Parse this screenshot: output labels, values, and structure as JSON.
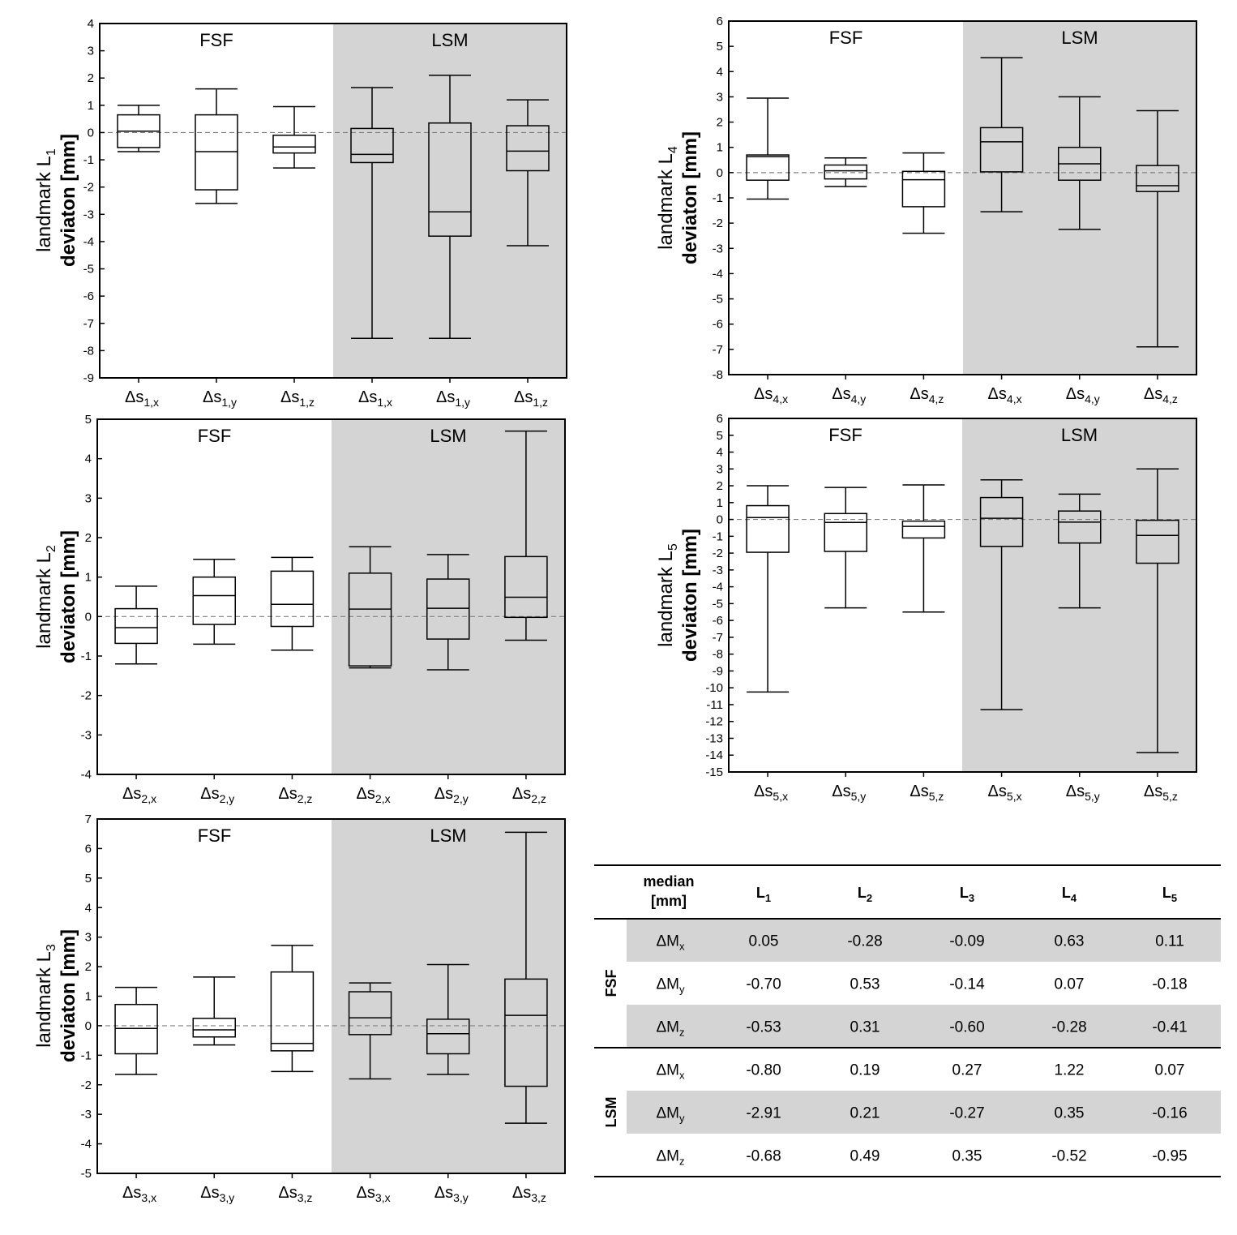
{
  "chart_data": [
    {
      "type": "box",
      "ylabel_line1": "landmark L",
      "ylabel_sub": "1",
      "ylabel_line2": "deviaton [mm]",
      "ylim": [
        -9,
        4
      ],
      "yticks": [
        4,
        3,
        2,
        1,
        0,
        -1,
        -2,
        -3,
        -4,
        -5,
        -6,
        -7,
        -8,
        -9
      ],
      "regions": [
        "FSF",
        "LSM"
      ],
      "categories": [
        {
          "base": "Δs",
          "sub": "1,x"
        },
        {
          "base": "Δs",
          "sub": "1,y"
        },
        {
          "base": "Δs",
          "sub": "1,z"
        },
        {
          "base": "Δs",
          "sub": "1,x"
        },
        {
          "base": "Δs",
          "sub": "1,y"
        },
        {
          "base": "Δs",
          "sub": "1,z"
        }
      ],
      "boxes": [
        {
          "min": -0.7,
          "q1": -0.55,
          "median": 0.05,
          "q3": 0.65,
          "max": 1.0
        },
        {
          "min": -2.6,
          "q1": -2.1,
          "median": -0.7,
          "q3": 0.65,
          "max": 1.6
        },
        {
          "min": -1.3,
          "q1": -0.75,
          "median": -0.53,
          "q3": -0.1,
          "max": 0.95
        },
        {
          "min": -7.55,
          "q1": -1.1,
          "median": -0.8,
          "q3": 0.15,
          "max": 1.65
        },
        {
          "min": -7.55,
          "q1": -3.8,
          "median": -2.91,
          "q3": 0.35,
          "max": 2.1
        },
        {
          "min": -4.15,
          "q1": -1.4,
          "median": -0.68,
          "q3": 0.25,
          "max": 1.2
        }
      ]
    },
    {
      "type": "box",
      "ylabel_line1": "landmark L",
      "ylabel_sub": "2",
      "ylabel_line2": "deviaton [mm]",
      "ylim": [
        -4,
        5
      ],
      "yticks": [
        5,
        4,
        3,
        2,
        1,
        0,
        -1,
        -2,
        -3,
        -4
      ],
      "regions": [
        "FSF",
        "LSM"
      ],
      "categories": [
        {
          "base": "Δs",
          "sub": "2,x"
        },
        {
          "base": "Δs",
          "sub": "2,y"
        },
        {
          "base": "Δs",
          "sub": "2,z"
        },
        {
          "base": "Δs",
          "sub": "2,x"
        },
        {
          "base": "Δs",
          "sub": "2,y"
        },
        {
          "base": "Δs",
          "sub": "2,z"
        }
      ],
      "boxes": [
        {
          "min": -1.2,
          "q1": -0.68,
          "median": -0.28,
          "q3": 0.2,
          "max": 0.77
        },
        {
          "min": -0.7,
          "q1": -0.2,
          "median": 0.53,
          "q3": 1.0,
          "max": 1.45
        },
        {
          "min": -0.85,
          "q1": -0.25,
          "median": 0.31,
          "q3": 1.15,
          "max": 1.5
        },
        {
          "min": -1.3,
          "q1": -1.25,
          "median": 0.19,
          "q3": 1.1,
          "max": 1.77
        },
        {
          "min": -1.35,
          "q1": -0.57,
          "median": 0.21,
          "q3": 0.95,
          "max": 1.57
        },
        {
          "min": -0.6,
          "q1": -0.02,
          "median": 0.49,
          "q3": 1.52,
          "max": 4.7
        }
      ]
    },
    {
      "type": "box",
      "ylabel_line1": "landmark L",
      "ylabel_sub": "3",
      "ylabel_line2": "deviaton [mm]",
      "ylim": [
        -5,
        7
      ],
      "yticks": [
        7,
        6,
        5,
        4,
        3,
        2,
        1,
        0,
        -1,
        -2,
        -3,
        -4,
        -5
      ],
      "regions": [
        "FSF",
        "LSM"
      ],
      "categories": [
        {
          "base": "Δs",
          "sub": "3,x"
        },
        {
          "base": "Δs",
          "sub": "3,y"
        },
        {
          "base": "Δs",
          "sub": "3,z"
        },
        {
          "base": "Δs",
          "sub": "3,x"
        },
        {
          "base": "Δs",
          "sub": "3,y"
        },
        {
          "base": "Δs",
          "sub": "3,z"
        }
      ],
      "boxes": [
        {
          "min": -1.65,
          "q1": -0.95,
          "median": -0.09,
          "q3": 0.72,
          "max": 1.3
        },
        {
          "min": -0.65,
          "q1": -0.38,
          "median": -0.14,
          "q3": 0.25,
          "max": 1.65
        },
        {
          "min": -1.55,
          "q1": -0.85,
          "median": -0.6,
          "q3": 1.82,
          "max": 2.72
        },
        {
          "min": -1.8,
          "q1": -0.3,
          "median": 0.27,
          "q3": 1.15,
          "max": 1.45
        },
        {
          "min": -1.65,
          "q1": -0.95,
          "median": -0.27,
          "q3": 0.22,
          "max": 2.07
        },
        {
          "min": -3.3,
          "q1": -2.05,
          "median": 0.35,
          "q3": 1.58,
          "max": 6.55
        }
      ]
    },
    {
      "type": "box",
      "ylabel_line1": "landmark L",
      "ylabel_sub": "4",
      "ylabel_line2": "deviaton [mm]",
      "ylim": [
        -8,
        6
      ],
      "yticks": [
        6,
        5,
        4,
        3,
        2,
        1,
        0,
        -1,
        -2,
        -3,
        -4,
        -5,
        -6,
        -7,
        -8
      ],
      "regions": [
        "FSF",
        "LSM"
      ],
      "categories": [
        {
          "base": "Δs",
          "sub": "4,x"
        },
        {
          "base": "Δs",
          "sub": "4,y"
        },
        {
          "base": "Δs",
          "sub": "4,z"
        },
        {
          "base": "Δs",
          "sub": "4,x"
        },
        {
          "base": "Δs",
          "sub": "4,y"
        },
        {
          "base": "Δs",
          "sub": "4,z"
        }
      ],
      "boxes": [
        {
          "min": -1.05,
          "q1": -0.3,
          "median": 0.63,
          "q3": 0.7,
          "max": 2.95
        },
        {
          "min": -0.55,
          "q1": -0.25,
          "median": 0.07,
          "q3": 0.3,
          "max": 0.58
        },
        {
          "min": -2.4,
          "q1": -1.35,
          "median": -0.28,
          "q3": 0.05,
          "max": 0.78
        },
        {
          "min": -1.55,
          "q1": 0.03,
          "median": 1.22,
          "q3": 1.78,
          "max": 4.55
        },
        {
          "min": -2.25,
          "q1": -0.3,
          "median": 0.35,
          "q3": 1.0,
          "max": 3.0
        },
        {
          "min": -6.9,
          "q1": -0.75,
          "median": -0.52,
          "q3": 0.28,
          "max": 2.45
        }
      ]
    },
    {
      "type": "box",
      "ylabel_line1": "landmark L",
      "ylabel_sub": "5",
      "ylabel_line2": "deviaton [mm]",
      "ylim": [
        -15,
        6
      ],
      "yticks": [
        6,
        5,
        4,
        3,
        2,
        1,
        0,
        -1,
        -2,
        -3,
        -4,
        -5,
        -6,
        -7,
        -8,
        -9,
        -10,
        -11,
        -12,
        -13,
        -14,
        -15
      ],
      "regions": [
        "FSF",
        "LSM"
      ],
      "categories": [
        {
          "base": "Δs",
          "sub": "5,x"
        },
        {
          "base": "Δs",
          "sub": "5,y"
        },
        {
          "base": "Δs",
          "sub": "5,z"
        },
        {
          "base": "Δs",
          "sub": "5,x"
        },
        {
          "base": "Δs",
          "sub": "5,y"
        },
        {
          "base": "Δs",
          "sub": "5,z"
        }
      ],
      "boxes": [
        {
          "min": -10.25,
          "q1": -1.95,
          "median": 0.11,
          "q3": 0.82,
          "max": 2.0
        },
        {
          "min": -5.25,
          "q1": -1.9,
          "median": -0.18,
          "q3": 0.35,
          "max": 1.9
        },
        {
          "min": -5.5,
          "q1": -1.1,
          "median": -0.41,
          "q3": -0.1,
          "max": 2.05
        },
        {
          "min": -11.3,
          "q1": -1.6,
          "median": 0.07,
          "q3": 1.3,
          "max": 2.35
        },
        {
          "min": -5.25,
          "q1": -1.4,
          "median": -0.16,
          "q3": 0.5,
          "max": 1.5
        },
        {
          "min": -13.85,
          "q1": -2.6,
          "median": -0.95,
          "q3": -0.05,
          "max": 3.0
        }
      ]
    },
    {
      "type": "table",
      "header": {
        "line1": "median",
        "line2": "[mm]",
        "columns": [
          {
            "base": "L",
            "sub": "1"
          },
          {
            "base": "L",
            "sub": "2"
          },
          {
            "base": "L",
            "sub": "3"
          },
          {
            "base": "L",
            "sub": "4"
          },
          {
            "base": "L",
            "sub": "5"
          }
        ]
      },
      "groups": [
        {
          "name": "FSF",
          "rows": [
            {
              "base": "ΔM",
              "sub": "x",
              "values": [
                "0.05",
                "-0.28",
                "-0.09",
                "0.63",
                "0.11"
              ]
            },
            {
              "base": "ΔM",
              "sub": "y",
              "values": [
                "-0.70",
                "0.53",
                "-0.14",
                "0.07",
                "-0.18"
              ]
            },
            {
              "base": "ΔM",
              "sub": "z",
              "values": [
                "-0.53",
                "0.31",
                "-0.60",
                "-0.28",
                "-0.41"
              ]
            }
          ]
        },
        {
          "name": "LSM",
          "rows": [
            {
              "base": "ΔM",
              "sub": "x",
              "values": [
                "-0.80",
                "0.19",
                "0.27",
                "1.22",
                "0.07"
              ]
            },
            {
              "base": "ΔM",
              "sub": "y",
              "values": [
                "-2.91",
                "0.21",
                "-0.27",
                "0.35",
                "-0.16"
              ]
            },
            {
              "base": "ΔM",
              "sub": "z",
              "values": [
                "-0.68",
                "0.49",
                "0.35",
                "-0.52",
                "-0.95"
              ]
            }
          ]
        }
      ]
    }
  ],
  "colors": {
    "lsm_background": "#d4d4d4",
    "row_shade": "#d4d4d4",
    "line": "#000000",
    "zero_line": "#808080"
  }
}
